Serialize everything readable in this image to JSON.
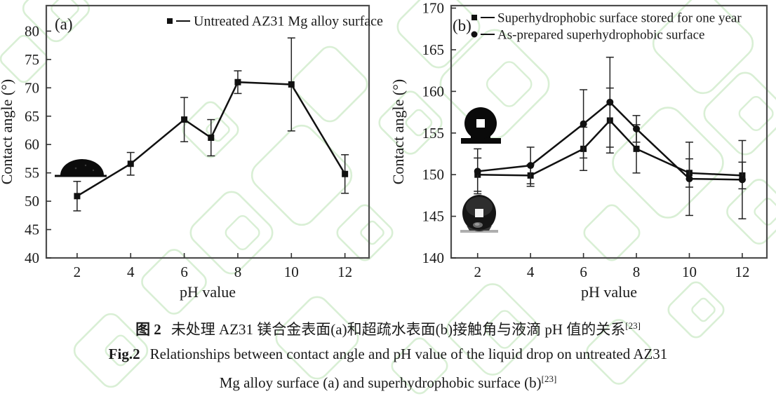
{
  "colors": {
    "data_line": "#111111",
    "frame": "#4d4d4d",
    "watermark_green": "#d9efd5",
    "text": "#1a1a1a"
  },
  "chart_data": [
    {
      "type": "line",
      "panel_label": "(a)",
      "xlabel": "pH value",
      "ylabel": "Contact angle (°)",
      "x": [
        2,
        4,
        6,
        7,
        8,
        10,
        12
      ],
      "xticks": [
        2,
        4,
        6,
        8,
        10,
        12
      ],
      "yticks": [
        40,
        45,
        50,
        55,
        60,
        65,
        70,
        75,
        80
      ],
      "xlim": [
        0.85,
        12.9
      ],
      "ylim": [
        40,
        84.5
      ],
      "grid": false,
      "legend_position": "top-center-inside",
      "series": [
        {
          "name": "Untreated AZ31 Mg alloy surface",
          "marker": "square",
          "values": [
            50.9,
            56.6,
            64.4,
            61.2,
            71.0,
            70.6,
            54.8
          ],
          "errors": [
            2.6,
            2.0,
            3.9,
            3.2,
            2.0,
            8.2,
            3.4
          ]
        }
      ],
      "insets": [
        {
          "name": "sessile-drop-silhouette",
          "description": "dark dome-shaped water drop resting on a baseline"
        }
      ]
    },
    {
      "type": "line",
      "panel_label": "(b)",
      "xlabel": "pH value",
      "ylabel": "Contact angle (°)",
      "x": [
        2,
        4,
        6,
        7,
        8,
        10,
        12
      ],
      "xticks": [
        2,
        4,
        6,
        8,
        10,
        12
      ],
      "yticks": [
        140,
        145,
        150,
        155,
        160,
        165,
        170
      ],
      "xlim": [
        1.0,
        12.93
      ],
      "ylim": [
        140,
        170.3
      ],
      "grid": false,
      "legend_position": "top-left-inside",
      "series": [
        {
          "name": "Superhydrophobic surface stored for one year",
          "marker": "square",
          "values": [
            150.0,
            149.9,
            153.1,
            156.5,
            153.1,
            150.2,
            149.9
          ],
          "errors": [
            2.0,
            1.3,
            2.6,
            3.9,
            2.9,
            1.7,
            1.6
          ]
        },
        {
          "name": "As-prepared superhydrophobic surface",
          "marker": "circle",
          "values": [
            150.4,
            151.1,
            156.1,
            158.7,
            155.5,
            149.5,
            149.4
          ],
          "errors": [
            2.7,
            2.2,
            4.1,
            5.4,
            1.6,
            4.4,
            4.7
          ]
        }
      ],
      "insets": [
        {
          "name": "spherical-drop-silhouette",
          "description": "black spherical water drop with white highlight on a black bar"
        },
        {
          "name": "spherical-drop-photo",
          "description": "grayscale photo of a near-spherical water drop on a surface"
        }
      ]
    }
  ],
  "captions": {
    "cn": {
      "label": "图 2",
      "text": "未处理 AZ31 镁合金表面(a)和超疏水表面(b)接触角与液滴 pH 值的关系",
      "ref": "[23]"
    },
    "en": {
      "label": "Fig.2",
      "line1": "Relationships between contact angle and pH value of the liquid drop on untreated AZ31",
      "line2": "Mg alloy surface (a) and superhydrophobic surface (b)",
      "ref": "[23]"
    }
  }
}
